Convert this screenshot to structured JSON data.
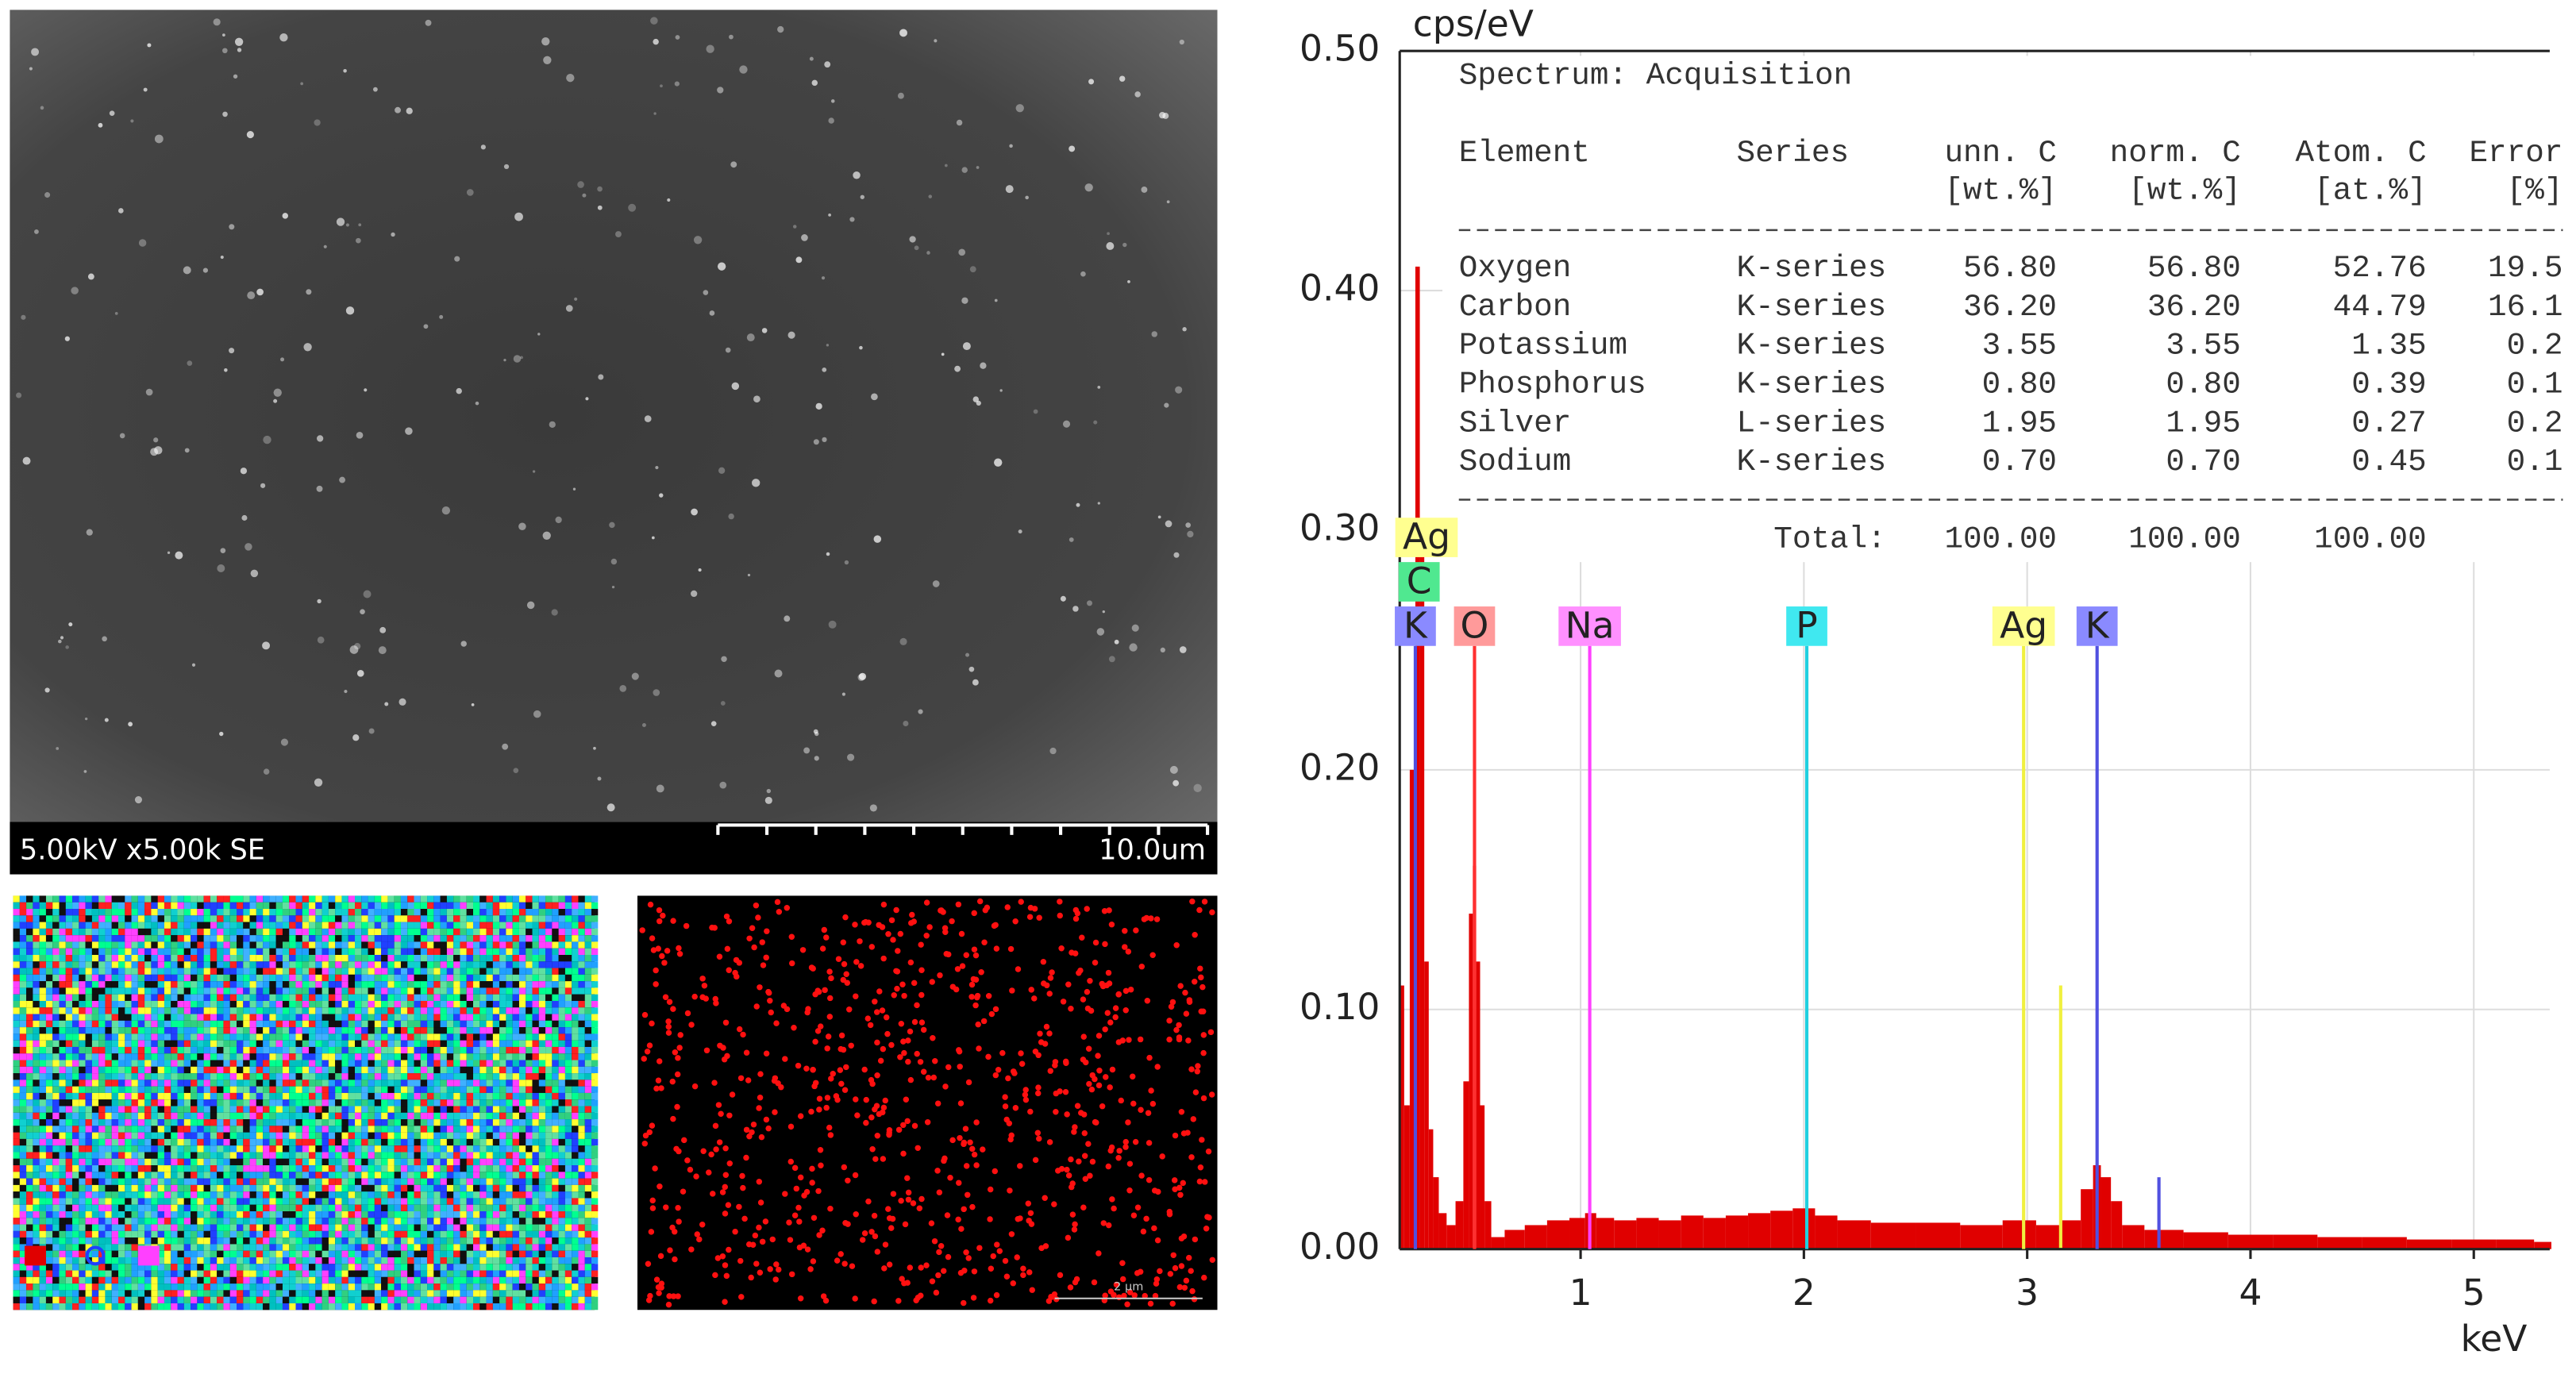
{
  "sem_image": {
    "caption": "5.00kV x5.00k SE",
    "scale_bar": "10.0um"
  },
  "map_scale_bar": "2 μm",
  "spectrum_table": {
    "title": "Spectrum: Acquisition",
    "columns": [
      {
        "name": "Element"
      },
      {
        "name": "Series"
      },
      {
        "name": "unn. C",
        "unit": "[wt.%]"
      },
      {
        "name": "norm. C",
        "unit": "[wt.%]"
      },
      {
        "name": "Atom. C",
        "unit": "[at.%]"
      },
      {
        "name": "Error",
        "unit": "[%]"
      }
    ],
    "rows": [
      [
        "Oxygen",
        "K-series",
        "56.80",
        "56.80",
        "52.76",
        "19.5"
      ],
      [
        "Carbon",
        "K-series",
        "36.20",
        "36.20",
        "44.79",
        "16.1"
      ],
      [
        "Potassium",
        "K-series",
        "3.55",
        "3.55",
        "1.35",
        "0.2"
      ],
      [
        "Phosphorus",
        "K-series",
        "0.80",
        "0.80",
        "0.39",
        "0.1"
      ],
      [
        "Silver",
        "L-series",
        "1.95",
        "1.95",
        "0.27",
        "0.2"
      ],
      [
        "Sodium",
        "K-series",
        "0.70",
        "0.70",
        "0.45",
        "0.1"
      ]
    ],
    "total": {
      "label": "Total:",
      "values": [
        "100.00",
        "100.00",
        "100.00"
      ]
    }
  },
  "chart_data": {
    "type": "area",
    "y_label": "cps/eV",
    "x_label": "keV",
    "color": "#e00000",
    "grid": true,
    "xlim": [
      0.19,
      5.34
    ],
    "xticks": [
      1,
      2,
      3,
      4,
      5
    ],
    "ylim": [
      0,
      0.5
    ],
    "yticks": [
      {
        "value": 0,
        "label": "0.00"
      },
      {
        "value": 0.1,
        "label": "0.10"
      },
      {
        "value": 0.2,
        "label": "0.20"
      },
      {
        "value": 0.3,
        "label": "0.30"
      },
      {
        "value": 0.4,
        "label": "0.40"
      },
      {
        "value": 0.5,
        "label": "0.50"
      }
    ],
    "x": [
      0.2,
      0.22,
      0.25,
      0.27,
      0.29,
      0.31,
      0.33,
      0.35,
      0.38,
      0.42,
      0.46,
      0.49,
      0.51,
      0.525,
      0.54,
      0.56,
      0.58,
      0.62,
      0.7,
      0.8,
      0.9,
      1.0,
      1.04,
      1.1,
      1.2,
      1.3,
      1.4,
      1.5,
      1.6,
      1.7,
      1.8,
      1.9,
      2.0,
      2.1,
      2.2,
      2.4,
      2.6,
      2.8,
      2.98,
      3.1,
      3.2,
      3.28,
      3.31,
      3.35,
      3.4,
      3.45,
      3.6,
      3.8,
      4.0,
      4.2,
      4.4,
      4.6,
      4.8,
      5.0,
      5.2,
      5.34
    ],
    "values": [
      0.11,
      0.06,
      0.2,
      0.41,
      0.3,
      0.12,
      0.05,
      0.03,
      0.015,
      0.01,
      0.02,
      0.07,
      0.14,
      0.16,
      0.12,
      0.06,
      0.02,
      0.005,
      0.008,
      0.01,
      0.012,
      0.013,
      0.015,
      0.013,
      0.012,
      0.013,
      0.012,
      0.014,
      0.013,
      0.014,
      0.015,
      0.016,
      0.017,
      0.014,
      0.012,
      0.011,
      0.011,
      0.01,
      0.012,
      0.01,
      0.012,
      0.025,
      0.035,
      0.03,
      0.02,
      0.01,
      0.008,
      0.007,
      0.006,
      0.006,
      0.005,
      0.005,
      0.004,
      0.004,
      0.004,
      0.003
    ],
    "peak_lines": [
      {
        "x": 3.15,
        "value": 0.11,
        "color": "#f0f040"
      },
      {
        "x": 3.59,
        "value": 0.03,
        "color": "#5050e0"
      }
    ],
    "markers": [
      {
        "label": "K",
        "x": 0.26,
        "color": "#5050e0",
        "label_color": "#8a8aff"
      },
      {
        "label": "C",
        "x": 0.277,
        "color": "#30c070",
        "label_color": "#50e890"
      },
      {
        "label": "Ag",
        "x": 0.31,
        "color": "#f0f040",
        "label_color": "#ffff90"
      },
      {
        "label": "O",
        "x": 0.525,
        "color": "#ff3030",
        "label_color": "#ff9a9a"
      },
      {
        "label": "Na",
        "x": 1.041,
        "color": "#ff40ff",
        "label_color": "#ff90ff"
      },
      {
        "label": "P",
        "x": 2.013,
        "color": "#20d0e0",
        "label_color": "#40e8f0"
      },
      {
        "label": "Ag",
        "x": 2.984,
        "color": "#f0f040",
        "label_color": "#ffff90"
      },
      {
        "label": "K",
        "x": 3.313,
        "color": "#5050e0",
        "label_color": "#8a8aff"
      }
    ]
  }
}
